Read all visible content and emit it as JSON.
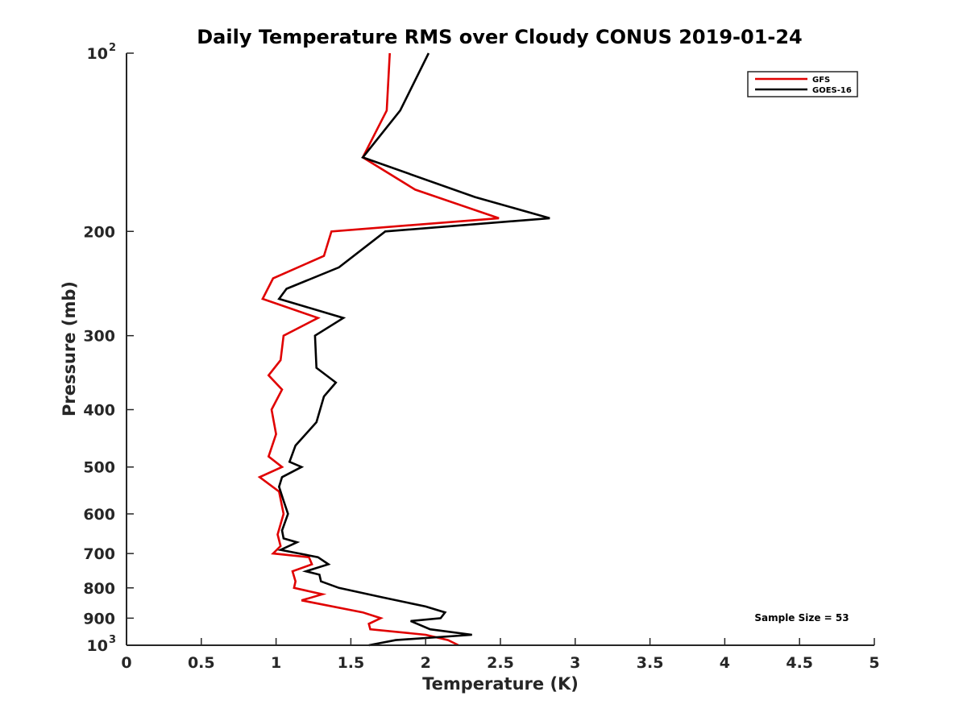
{
  "chart_data": {
    "type": "line",
    "title": "Daily Temperature RMS over Cloudy CONUS 2019-01-24",
    "xlabel": "Temperature (K)",
    "ylabel": "Pressure (mb)",
    "xlim": [
      0,
      5
    ],
    "ylim": [
      100,
      1000
    ],
    "y_scale": "log",
    "y_direction": "reversed",
    "grid": false,
    "legend_position": "top-right",
    "x_ticks": [
      {
        "value": 0,
        "label": "0"
      },
      {
        "value": 0.5,
        "label": "0.5"
      },
      {
        "value": 1,
        "label": "1"
      },
      {
        "value": 1.5,
        "label": "1.5"
      },
      {
        "value": 2,
        "label": "2"
      },
      {
        "value": 2.5,
        "label": "2.5"
      },
      {
        "value": 3,
        "label": "3"
      },
      {
        "value": 3.5,
        "label": "3.5"
      },
      {
        "value": 4,
        "label": "4"
      },
      {
        "value": 4.5,
        "label": "4.5"
      },
      {
        "value": 5,
        "label": "5"
      }
    ],
    "y_ticks": [
      {
        "value": 100,
        "label": "10",
        "exponent": "2"
      },
      {
        "value": 200,
        "label": "200",
        "exponent": ""
      },
      {
        "value": 300,
        "label": "300",
        "exponent": ""
      },
      {
        "value": 400,
        "label": "400",
        "exponent": ""
      },
      {
        "value": 500,
        "label": "500",
        "exponent": ""
      },
      {
        "value": 600,
        "label": "600",
        "exponent": ""
      },
      {
        "value": 700,
        "label": "700",
        "exponent": ""
      },
      {
        "value": 800,
        "label": "800",
        "exponent": ""
      },
      {
        "value": 900,
        "label": "900",
        "exponent": ""
      },
      {
        "value": 1000,
        "label": "10",
        "exponent": "3"
      }
    ],
    "annotation": "Sample Size = 53",
    "series": [
      {
        "name": "GFS",
        "color": "#e00000",
        "points": [
          [
            1.76,
            100
          ],
          [
            1.74,
            125
          ],
          [
            1.58,
            150
          ],
          [
            1.93,
            170
          ],
          [
            2.49,
            190
          ],
          [
            1.37,
            200
          ],
          [
            1.32,
            220
          ],
          [
            0.98,
            240
          ],
          [
            0.91,
            260
          ],
          [
            1.28,
            280
          ],
          [
            1.05,
            300
          ],
          [
            1.03,
            330
          ],
          [
            0.95,
            350
          ],
          [
            1.04,
            370
          ],
          [
            0.97,
            400
          ],
          [
            1.0,
            440
          ],
          [
            0.95,
            480
          ],
          [
            1.04,
            500
          ],
          [
            0.89,
            520
          ],
          [
            1.02,
            550
          ],
          [
            1.05,
            600
          ],
          [
            1.01,
            650
          ],
          [
            1.03,
            680
          ],
          [
            0.98,
            700
          ],
          [
            1.22,
            710
          ],
          [
            1.24,
            730
          ],
          [
            1.11,
            750
          ],
          [
            1.13,
            780
          ],
          [
            1.12,
            800
          ],
          [
            1.31,
            820
          ],
          [
            1.17,
            840
          ],
          [
            1.58,
            880
          ],
          [
            1.7,
            900
          ],
          [
            1.62,
            920
          ],
          [
            1.63,
            940
          ],
          [
            2.0,
            960
          ],
          [
            2.15,
            980
          ],
          [
            2.22,
            1000
          ]
        ]
      },
      {
        "name": "GOES-16",
        "color": "#000000",
        "points": [
          [
            2.02,
            100
          ],
          [
            1.83,
            125
          ],
          [
            1.58,
            150
          ],
          [
            2.33,
            175
          ],
          [
            2.83,
            190
          ],
          [
            1.73,
            200
          ],
          [
            1.42,
            230
          ],
          [
            1.07,
            250
          ],
          [
            1.02,
            260
          ],
          [
            1.45,
            280
          ],
          [
            1.26,
            300
          ],
          [
            1.27,
            340
          ],
          [
            1.4,
            360
          ],
          [
            1.32,
            380
          ],
          [
            1.27,
            420
          ],
          [
            1.13,
            460
          ],
          [
            1.09,
            490
          ],
          [
            1.17,
            500
          ],
          [
            1.04,
            520
          ],
          [
            1.02,
            540
          ],
          [
            1.05,
            570
          ],
          [
            1.08,
            600
          ],
          [
            1.04,
            640
          ],
          [
            1.05,
            660
          ],
          [
            1.14,
            670
          ],
          [
            1.03,
            690
          ],
          [
            1.28,
            710
          ],
          [
            1.35,
            730
          ],
          [
            1.2,
            750
          ],
          [
            1.29,
            760
          ],
          [
            1.3,
            780
          ],
          [
            1.42,
            800
          ],
          [
            1.71,
            830
          ],
          [
            2.0,
            860
          ],
          [
            2.13,
            880
          ],
          [
            2.1,
            900
          ],
          [
            1.9,
            910
          ],
          [
            2.03,
            940
          ],
          [
            2.31,
            960
          ],
          [
            1.8,
            980
          ],
          [
            1.62,
            1000
          ]
        ]
      }
    ]
  }
}
